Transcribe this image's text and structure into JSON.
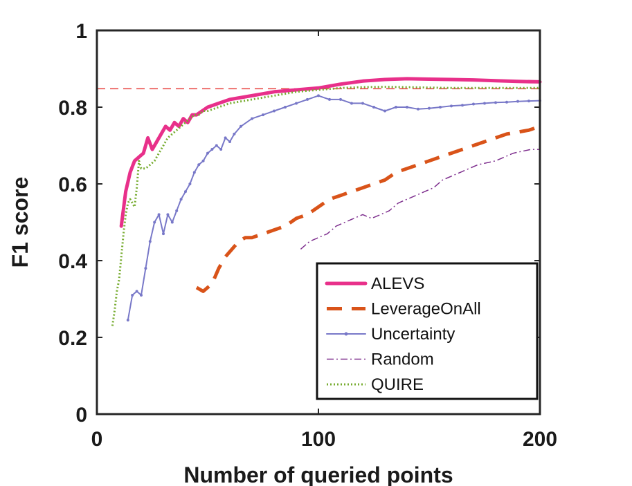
{
  "chart_data": {
    "type": "line",
    "title": "",
    "xlabel": "Number of queried points",
    "ylabel": "F1 score",
    "xlim": [
      0,
      200
    ],
    "ylim": [
      0,
      1
    ],
    "xticks": [
      0,
      100,
      200
    ],
    "xtick_labels": [
      "0",
      "100",
      "200"
    ],
    "yticks": [
      0,
      0.2,
      0.4,
      0.6,
      0.8,
      1
    ],
    "ytick_labels": [
      "0",
      "0.2",
      "0.4",
      "0.6",
      "0.8",
      "1"
    ],
    "grid": false,
    "legend_position": "bottom-right",
    "reference_line": {
      "y": 0.848,
      "color": "#e8413f",
      "style": "dashed"
    },
    "series": [
      {
        "name": "ALEVS",
        "color": "#e8308a",
        "style": "solid-thick",
        "x": [
          11,
          13,
          15,
          17,
          19,
          21,
          23,
          25,
          27,
          29,
          31,
          33,
          35,
          37,
          39,
          41,
          43,
          45,
          50,
          55,
          60,
          70,
          80,
          90,
          100,
          110,
          120,
          130,
          140,
          150,
          160,
          170,
          180,
          190,
          200
        ],
        "y": [
          0.49,
          0.58,
          0.63,
          0.66,
          0.67,
          0.68,
          0.72,
          0.69,
          0.71,
          0.73,
          0.75,
          0.74,
          0.76,
          0.75,
          0.77,
          0.76,
          0.78,
          0.78,
          0.8,
          0.81,
          0.82,
          0.83,
          0.84,
          0.845,
          0.85,
          0.86,
          0.868,
          0.872,
          0.874,
          0.873,
          0.872,
          0.871,
          0.869,
          0.867,
          0.866
        ]
      },
      {
        "name": "LeverageOnAll",
        "color": "#d95319",
        "style": "dashed-thick",
        "x": [
          45,
          48,
          52,
          55,
          58,
          61,
          64,
          67,
          70,
          75,
          80,
          85,
          90,
          95,
          100,
          105,
          110,
          115,
          120,
          125,
          130,
          135,
          140,
          145,
          150,
          155,
          160,
          165,
          170,
          175,
          180,
          185,
          190,
          195,
          200
        ],
        "y": [
          0.33,
          0.32,
          0.34,
          0.38,
          0.41,
          0.43,
          0.45,
          0.46,
          0.46,
          0.47,
          0.48,
          0.49,
          0.51,
          0.52,
          0.54,
          0.56,
          0.57,
          0.58,
          0.59,
          0.6,
          0.61,
          0.63,
          0.64,
          0.65,
          0.66,
          0.67,
          0.68,
          0.69,
          0.7,
          0.71,
          0.72,
          0.73,
          0.735,
          0.74,
          0.75
        ]
      },
      {
        "name": "Uncertainty",
        "color": "#7878c8",
        "style": "solid-thin-markers",
        "x": [
          14,
          16,
          18,
          20,
          22,
          24,
          26,
          28,
          30,
          32,
          34,
          36,
          38,
          40,
          42,
          44,
          46,
          48,
          50,
          52,
          54,
          56,
          58,
          60,
          62,
          65,
          70,
          75,
          80,
          85,
          90,
          95,
          100,
          105,
          110,
          115,
          120,
          125,
          130,
          135,
          140,
          145,
          150,
          155,
          160,
          165,
          170,
          175,
          180,
          185,
          190,
          195,
          200
        ],
        "y": [
          0.245,
          0.31,
          0.32,
          0.31,
          0.38,
          0.45,
          0.5,
          0.52,
          0.47,
          0.52,
          0.5,
          0.53,
          0.56,
          0.58,
          0.6,
          0.63,
          0.65,
          0.66,
          0.68,
          0.69,
          0.7,
          0.69,
          0.72,
          0.71,
          0.73,
          0.75,
          0.77,
          0.78,
          0.79,
          0.8,
          0.81,
          0.82,
          0.83,
          0.82,
          0.82,
          0.81,
          0.81,
          0.8,
          0.79,
          0.8,
          0.8,
          0.795,
          0.797,
          0.8,
          0.803,
          0.805,
          0.808,
          0.81,
          0.812,
          0.813,
          0.815,
          0.816,
          0.817
        ]
      },
      {
        "name": "Random",
        "color": "#7e2f8e",
        "style": "dash-dot-thin",
        "x": [
          92,
          96,
          100,
          104,
          108,
          112,
          116,
          120,
          124,
          128,
          132,
          136,
          140,
          144,
          148,
          152,
          156,
          160,
          164,
          168,
          172,
          176,
          180,
          184,
          188,
          192,
          196,
          200
        ],
        "y": [
          0.43,
          0.45,
          0.46,
          0.47,
          0.49,
          0.5,
          0.51,
          0.52,
          0.51,
          0.52,
          0.53,
          0.55,
          0.56,
          0.57,
          0.58,
          0.59,
          0.61,
          0.62,
          0.63,
          0.64,
          0.65,
          0.655,
          0.66,
          0.67,
          0.68,
          0.685,
          0.69,
          0.69
        ]
      },
      {
        "name": "QUIRE",
        "color": "#77ac30",
        "style": "dotted",
        "x": [
          7,
          8,
          9,
          10,
          11,
          12,
          13,
          14,
          15,
          16,
          17,
          18,
          19,
          20,
          22,
          24,
          26,
          28,
          30,
          32,
          34,
          36,
          38,
          40,
          42,
          44,
          46,
          48,
          50,
          55,
          60,
          65,
          70,
          80,
          90,
          100,
          110,
          120,
          130,
          140,
          150,
          160,
          170,
          180,
          190,
          200
        ],
        "y": [
          0.23,
          0.27,
          0.32,
          0.35,
          0.41,
          0.47,
          0.52,
          0.55,
          0.56,
          0.55,
          0.54,
          0.59,
          0.66,
          0.64,
          0.64,
          0.65,
          0.66,
          0.68,
          0.7,
          0.72,
          0.73,
          0.74,
          0.75,
          0.76,
          0.77,
          0.78,
          0.78,
          0.79,
          0.79,
          0.8,
          0.81,
          0.815,
          0.82,
          0.83,
          0.84,
          0.845,
          0.85,
          0.852,
          0.853,
          0.852,
          0.851,
          0.85,
          0.85,
          0.85,
          0.85,
          0.85
        ]
      }
    ]
  }
}
